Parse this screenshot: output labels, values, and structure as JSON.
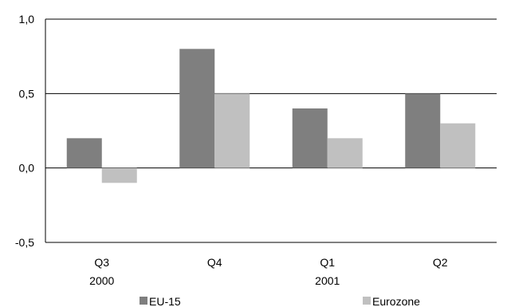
{
  "chart_data": {
    "type": "bar",
    "categories": [
      "Q3",
      "Q4",
      "Q1",
      "Q2"
    ],
    "period_labels": [
      "2000",
      "",
      "2001",
      ""
    ],
    "series": [
      {
        "name": "EU-15",
        "values": [
          0.2,
          0.8,
          0.4,
          0.5
        ],
        "color": "#7f7f7f"
      },
      {
        "name": "Eurozone",
        "values": [
          -0.1,
          0.5,
          0.2,
          0.3
        ],
        "color": "#c0c0c0"
      }
    ],
    "ylim": [
      -0.5,
      1.0
    ],
    "yticks": [
      -0.5,
      0.0,
      0.5,
      1.0
    ],
    "ytick_labels": [
      "-0,5",
      "0,0",
      "0,5",
      "1,0"
    ],
    "grid": true,
    "legend_position": "bottom"
  }
}
